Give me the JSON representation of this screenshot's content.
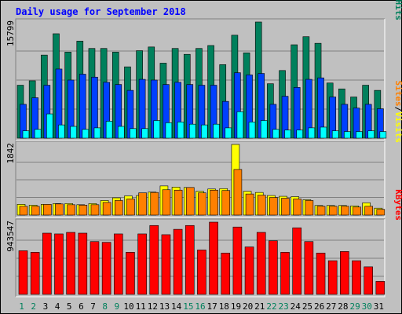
{
  "chart_data": {
    "type": "bar",
    "title": "Daily usage for September 2018",
    "categories": [
      "1",
      "2",
      "3",
      "4",
      "5",
      "6",
      "7",
      "8",
      "9",
      "10",
      "11",
      "12",
      "13",
      "14",
      "15",
      "16",
      "17",
      "18",
      "19",
      "20",
      "21",
      "22",
      "23",
      "24",
      "25",
      "26",
      "27",
      "28",
      "29",
      "30",
      "31"
    ],
    "weekend_categories": [
      "1",
      "2",
      "8",
      "9",
      "15",
      "16",
      "22",
      "23",
      "29",
      "30"
    ],
    "panels": [
      {
        "id": "hits_files_pages",
        "ymax_label": "15799",
        "ymax": 15799,
        "legend": [
          {
            "text": "Pages",
            "color": "#00ffff"
          },
          {
            "text": "/",
            "color": "#000000"
          },
          {
            "text": "Files",
            "color": "#0000ff"
          },
          {
            "text": "/",
            "color": "#000000"
          },
          {
            "text": "Hits",
            "color": "#00805c"
          }
        ],
        "series": [
          {
            "name": "Hits",
            "color": "#00805c",
            "values": [
              7200,
              7800,
              11300,
              14200,
              11700,
              13200,
              12200,
              12200,
              11700,
              9700,
              11900,
              12400,
              10200,
              12200,
              11400,
              12200,
              12600,
              10000,
              14000,
              11600,
              15799,
              7400,
              9200,
              12700,
              13800,
              12900,
              7500,
              6700,
              5600,
              7200,
              6500
            ]
          },
          {
            "name": "Files",
            "color": "#0040ff",
            "values": [
              4600,
              5500,
              7200,
              9400,
              7900,
              8700,
              8300,
              7600,
              7300,
              6500,
              8000,
              7900,
              7300,
              7600,
              7300,
              7200,
              7200,
              5000,
              8900,
              8600,
              8800,
              4600,
              5700,
              6900,
              8000,
              8200,
              5600,
              4600,
              4100,
              4600,
              4000
            ]
          },
          {
            "name": "Pages",
            "color": "#00ffff",
            "values": [
              1000,
              1200,
              3300,
              1800,
              1600,
              1200,
              1400,
              2300,
              1600,
              1300,
              1300,
              2400,
              2100,
              2200,
              1900,
              1800,
              1900,
              1400,
              3600,
              2200,
              2400,
              1200,
              1100,
              1100,
              1400,
              1500,
              1000,
              900,
              900,
              1000,
              900
            ]
          }
        ]
      },
      {
        "id": "visits_sites",
        "ymax_label": "1842",
        "ymax": 1842,
        "legend": [
          {
            "text": "Sites",
            "color": "#ff8000"
          },
          {
            "text": "/",
            "color": "#000000"
          },
          {
            "text": "Visits",
            "color": "#ffff00"
          }
        ],
        "series": [
          {
            "name": "Visits",
            "color": "#ffff00",
            "values": [
              280,
              260,
              280,
              300,
              300,
              270,
              300,
              380,
              450,
              500,
              510,
              600,
              760,
              730,
              720,
              620,
              680,
              690,
              1842,
              620,
              590,
              510,
              490,
              480,
              400,
              250,
              250,
              250,
              240,
              320,
              180
            ]
          },
          {
            "name": "Sites",
            "color": "#ff8000",
            "values": [
              230,
              230,
              280,
              290,
              270,
              260,
              270,
              330,
              380,
              420,
              580,
              590,
              660,
              650,
              720,
              580,
              650,
              640,
              1190,
              550,
              520,
              460,
              440,
              420,
              380,
              230,
              230,
              230,
              210,
              230,
              150
            ]
          }
        ]
      },
      {
        "id": "kbytes",
        "ymax_label": "943547",
        "ymax": 943547,
        "legend": [
          {
            "text": "KBytes",
            "color": "#ff0000"
          }
        ],
        "series": [
          {
            "name": "KBytes",
            "color": "#ff0000",
            "values": [
              570000,
              550000,
              800000,
              790000,
              810000,
              800000,
              690000,
              680000,
              790000,
              550000,
              790000,
              900000,
              780000,
              850000,
              900000,
              580000,
              943547,
              540000,
              880000,
              620000,
              810000,
              700000,
              550000,
              870000,
              690000,
              540000,
              440000,
              560000,
              440000,
              360000,
              170000
            ]
          }
        ]
      }
    ]
  }
}
